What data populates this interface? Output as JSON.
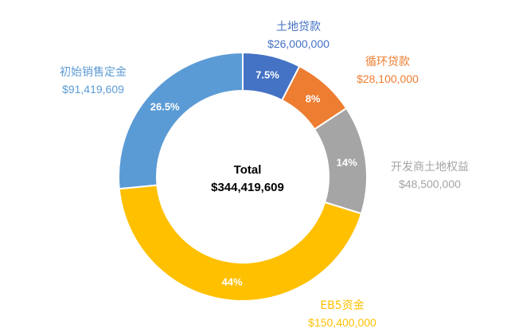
{
  "chart_data": {
    "type": "pie",
    "variant": "donut",
    "center_label": "Total",
    "center_value": "$344,419,609",
    "slices": [
      {
        "label": "土地贷款",
        "value": 26000000,
        "value_label": "$26,000,000",
        "percent_label": "7.5%",
        "color": "#4472C4"
      },
      {
        "label": "循环贷款",
        "value": 28100000,
        "value_label": "$28,100,000",
        "percent_label": "8%",
        "color": "#ED7D31"
      },
      {
        "label": "开发商土地权益",
        "value": 48500000,
        "value_label": "$48,500,000",
        "percent_label": "14%",
        "color": "#A5A5A5"
      },
      {
        "label": "EB5资金",
        "value": 150400000,
        "value_label": "$150,400,000",
        "percent_label": "44%",
        "color": "#FFC000"
      },
      {
        "label": "初始销售定金",
        "value": 91419609,
        "value_label": "$91,419,609",
        "percent_label": "26.5%",
        "color": "#5B9BD5"
      }
    ]
  }
}
